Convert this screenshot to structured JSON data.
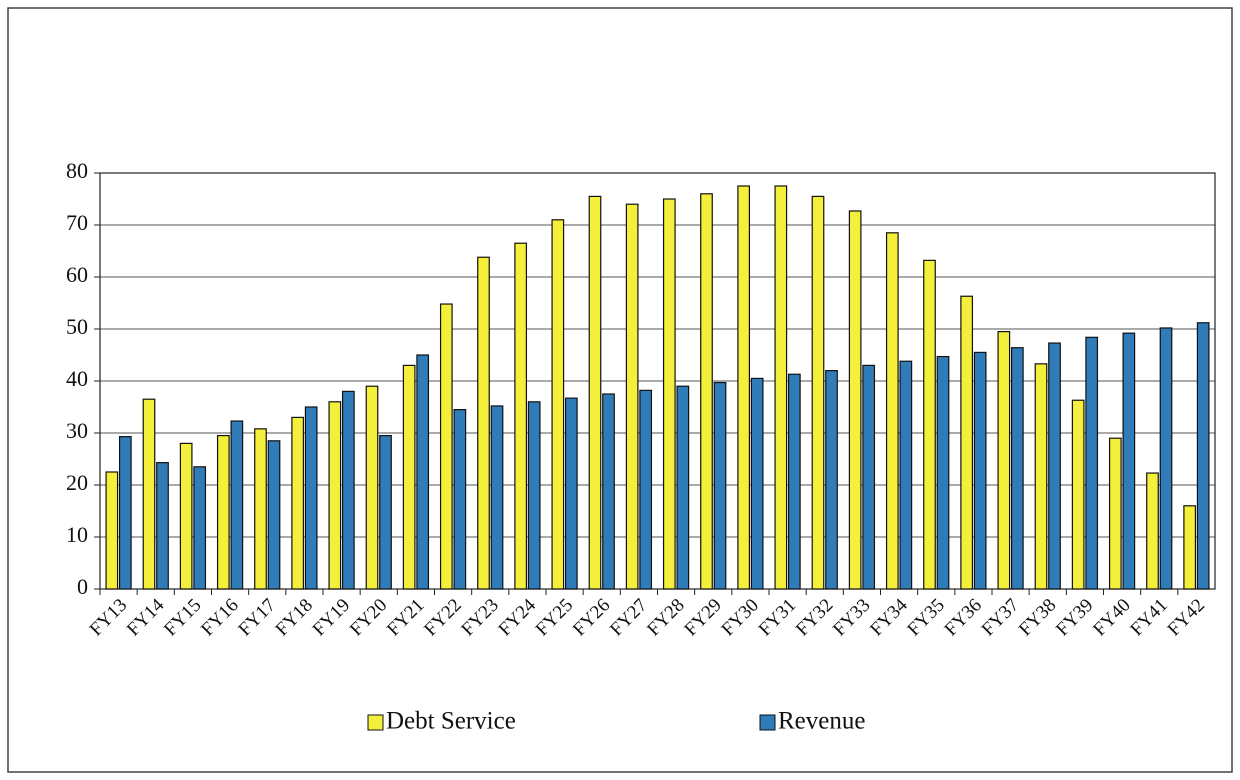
{
  "chart_data": {
    "type": "bar",
    "categories": [
      "FY13",
      "FY14",
      "FY15",
      "FY16",
      "FY17",
      "FY18",
      "FY19",
      "FY20",
      "FY21",
      "FY22",
      "FY23",
      "FY24",
      "FY25",
      "FY26",
      "FY27",
      "FY28",
      "FY29",
      "FY30",
      "FY31",
      "FY32",
      "FY33",
      "FY34",
      "FY35",
      "FY36",
      "FY37",
      "FY38",
      "FY39",
      "FY40",
      "FY41",
      "FY42"
    ],
    "series": [
      {
        "name": "Debt Service",
        "color": "#f4ef3a",
        "values": [
          22.5,
          36.5,
          28,
          29.5,
          30.8,
          33,
          36,
          39,
          43,
          54.8,
          63.8,
          66.5,
          71,
          75.5,
          74,
          75,
          76,
          77.5,
          77.5,
          75.5,
          72.7,
          68.5,
          63.2,
          56.3,
          49.5,
          43.3,
          36.3,
          29,
          22.3,
          16
        ]
      },
      {
        "name": "Revenue",
        "color": "#2f7cb9",
        "values": [
          29.3,
          24.3,
          23.5,
          32.3,
          28.5,
          35,
          38,
          29.5,
          45,
          34.5,
          35.2,
          36,
          36.7,
          37.5,
          38.2,
          39,
          39.7,
          40.5,
          41.3,
          42,
          43,
          43.8,
          44.7,
          45.5,
          46.4,
          47.3,
          48.4,
          49.2,
          50.2,
          51.2
        ]
      }
    ],
    "ylim": [
      0,
      80
    ],
    "yticks": [
      0,
      10,
      20,
      30,
      40,
      50,
      60,
      70,
      80
    ],
    "grid": true,
    "legend": "bottom"
  }
}
